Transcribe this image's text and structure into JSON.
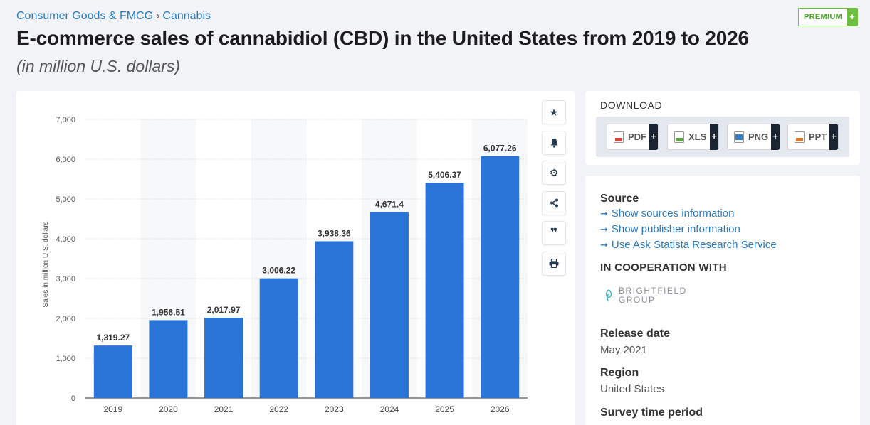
{
  "breadcrumb": {
    "category": "Consumer Goods & FMCG",
    "separator": "›",
    "topic": "Cannabis"
  },
  "premium": {
    "label": "PREMIUM",
    "plus": "+"
  },
  "title": "E-commerce sales of cannabidiol (CBD) in the United States from 2019 to 2026",
  "subtitle": "(in million U.S. dollars)",
  "chart_data": {
    "type": "bar",
    "categories": [
      "2019",
      "2020",
      "2021",
      "2022",
      "2023",
      "2024",
      "2025",
      "2026"
    ],
    "values": [
      1319.27,
      1956.51,
      2017.97,
      3006.22,
      3938.36,
      4671.4,
      5406.37,
      6077.26
    ],
    "value_labels": [
      "1,319.27",
      "1,956.51",
      "2,017.97",
      "3,006.22",
      "3,938.36",
      "4,671.4",
      "5,406.37",
      "6,077.26"
    ],
    "ylabel": "Sales in million U.S. dollars",
    "xlabel": "",
    "ylim": [
      0,
      7000
    ],
    "yticks": [
      0,
      1000,
      2000,
      3000,
      4000,
      5000,
      6000,
      7000
    ],
    "ytick_labels": [
      "0",
      "1,000",
      "2,000",
      "3,000",
      "4,000",
      "5,000",
      "6,000",
      "7,000"
    ],
    "grid": true,
    "bar_color": "#2a74d8",
    "alternate_band_color": "#f7f8fa"
  },
  "tools": [
    {
      "name": "star-icon",
      "glyph": "★"
    },
    {
      "name": "bell-icon",
      "glyph": "🔔"
    },
    {
      "name": "gear-icon",
      "glyph": "⚙"
    },
    {
      "name": "share-icon",
      "glyph": "⋖"
    },
    {
      "name": "quote-icon",
      "glyph": "❞"
    },
    {
      "name": "print-icon",
      "glyph": "⎙"
    }
  ],
  "download": {
    "title": "DOWNLOAD",
    "buttons": [
      {
        "label": "PDF",
        "plus": "+",
        "icon": "pdf-icon",
        "color": "#d9453d"
      },
      {
        "label": "XLS",
        "plus": "+",
        "icon": "xls-icon",
        "color": "#5aa540"
      },
      {
        "label": "PNG",
        "plus": "+",
        "icon": "png-icon",
        "color": "#3a7bc8"
      },
      {
        "label": "PPT",
        "plus": "+",
        "icon": "ppt-icon",
        "color": "#e07a2a"
      }
    ]
  },
  "info": {
    "source_heading": "Source",
    "links": [
      "Show sources information",
      "Show publisher information",
      "Use Ask Statista Research Service"
    ],
    "link_arrow": "➞",
    "coop_heading": "IN COOPERATION WITH",
    "coop_logo_line1": "BRIGHTFIELD",
    "coop_logo_line2": "GROUP",
    "release_heading": "Release date",
    "release_value": "May 2021",
    "region_heading": "Region",
    "region_value": "United States",
    "survey_heading": "Survey time period"
  }
}
